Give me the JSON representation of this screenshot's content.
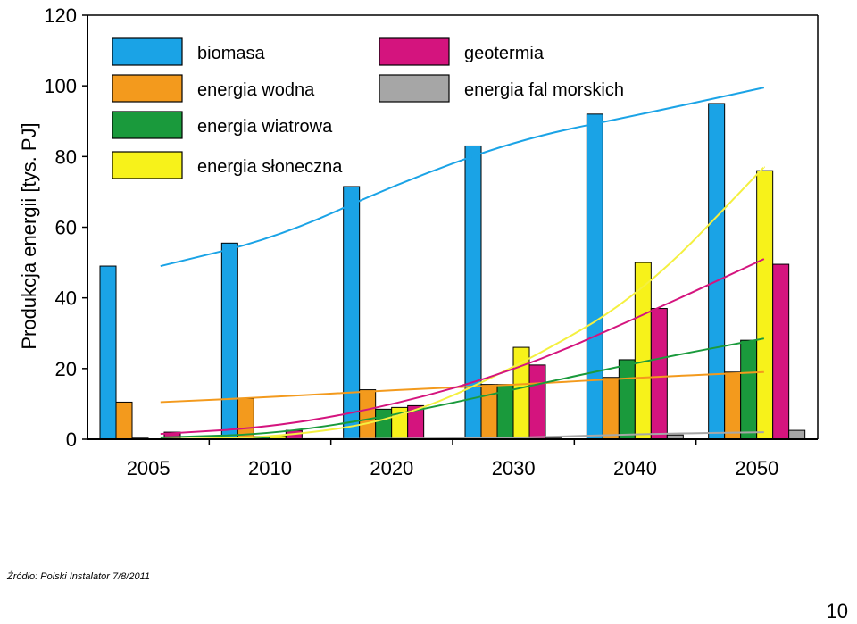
{
  "chart_data": {
    "type": "bar",
    "title": "",
    "xlabel": "",
    "ylabel": "Produkcja energii [tys. PJ]",
    "ylim": [
      0,
      120
    ],
    "yticks": [
      "0",
      "20",
      "40",
      "60",
      "80",
      "100",
      "120"
    ],
    "categories": [
      "2005",
      "2010",
      "2020",
      "2030",
      "2040",
      "2050"
    ],
    "series": [
      {
        "name": "biomasa",
        "color": "#1aa3e6",
        "values": [
          49,
          55.5,
          71.5,
          83,
          92,
          95
        ],
        "trend": [
          49,
          57,
          72.5,
          85,
          92,
          99.5
        ]
      },
      {
        "name": "energia wodna",
        "color": "#f39a1d",
        "values": [
          10.5,
          11.5,
          14,
          15.5,
          17.5,
          19
        ],
        "trend": [
          10.5,
          12,
          14,
          15.5,
          17.5,
          19
        ]
      },
      {
        "name": "energia wiatrowa",
        "color": "#1a9a3c",
        "values": [
          0.3,
          0.8,
          8.5,
          15.5,
          22.5,
          28
        ],
        "trend": [
          0.5,
          1.5,
          7,
          14.5,
          22,
          28.5
        ]
      },
      {
        "name": "energia słoneczna",
        "color": "#f7f21a",
        "values": [
          0.1,
          1,
          9,
          26,
          50,
          76
        ],
        "trend": [
          0,
          0.5,
          5.5,
          21,
          41,
          77
        ]
      },
      {
        "name": "geotermia",
        "color": "#d4147e",
        "values": [
          2,
          2.5,
          9.5,
          21,
          37,
          49.5
        ],
        "trend": [
          1.5,
          3.5,
          10,
          20,
          35,
          51
        ]
      },
      {
        "name": "energia fal morskich",
        "color": "#a6a6a6",
        "values": [
          0,
          0,
          0,
          0.3,
          1.2,
          2.5
        ],
        "trend": [
          0,
          0,
          0.1,
          0.4,
          1.5,
          2
        ]
      }
    ],
    "legend": [
      {
        "label": "biomasa",
        "color": "#1aa3e6"
      },
      {
        "label": "energia wodna",
        "color": "#f39a1d"
      },
      {
        "label": "energia wiatrowa",
        "color": "#1a9a3c"
      },
      {
        "label": "energia słoneczna",
        "color": "#f7f21a"
      },
      {
        "label": "geotermia",
        "color": "#d4147e"
      },
      {
        "label": "energia fal morskich",
        "color": "#a6a6a6"
      }
    ],
    "legend_position": "top-left",
    "grid": false
  },
  "footer": {
    "source": "Źródło: Polski Instalator 7/8/2011",
    "page_number": "10"
  }
}
